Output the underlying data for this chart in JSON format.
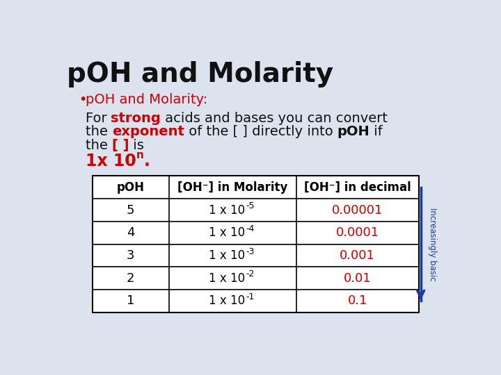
{
  "title": "pOH and Molarity",
  "title_color": "#111111",
  "background_color": "#dce3ee",
  "red_color": "#cc0000",
  "black_color": "#111111",
  "arrow_color": "#1a3a9c",
  "bullet_line": "pOH and Molarity:",
  "body_lines": [
    [
      {
        "text": "For ",
        "bold": false,
        "color": "#111111"
      },
      {
        "text": "strong",
        "bold": true,
        "color": "#cc0000"
      },
      {
        "text": " acids and bases you can convert",
        "bold": false,
        "color": "#111111"
      }
    ],
    [
      {
        "text": "the ",
        "bold": false,
        "color": "#111111"
      },
      {
        "text": "exponent",
        "bold": true,
        "color": "#cc0000"
      },
      {
        "text": " of the [ ] directly into ",
        "bold": false,
        "color": "#111111"
      },
      {
        "text": "pOH",
        "bold": true,
        "color": "#111111"
      },
      {
        "text": " if",
        "bold": false,
        "color": "#111111"
      }
    ],
    [
      {
        "text": "the ",
        "bold": false,
        "color": "#111111"
      },
      {
        "text": "[ ]",
        "bold": true,
        "color": "#cc0000"
      },
      {
        "text": " is",
        "bold": false,
        "color": "#111111"
      }
    ]
  ],
  "table_headers": [
    "pOH",
    "[OH⁻] in Molarity",
    "[OH⁻] in decimal"
  ],
  "poh_values": [
    "5",
    "4",
    "3",
    "2",
    "1"
  ],
  "molarity_base": "1 x 10",
  "molarity_exponents": [
    "-5",
    "-4",
    "-3",
    "-2",
    "-1"
  ],
  "decimal_values": [
    "0.00001",
    "0.0001",
    "0.001",
    "0.01",
    "0.1"
  ],
  "arrow_label": "Increasingly basic",
  "title_fontsize": 28,
  "body_fontsize": 14,
  "table_fontsize": 12
}
